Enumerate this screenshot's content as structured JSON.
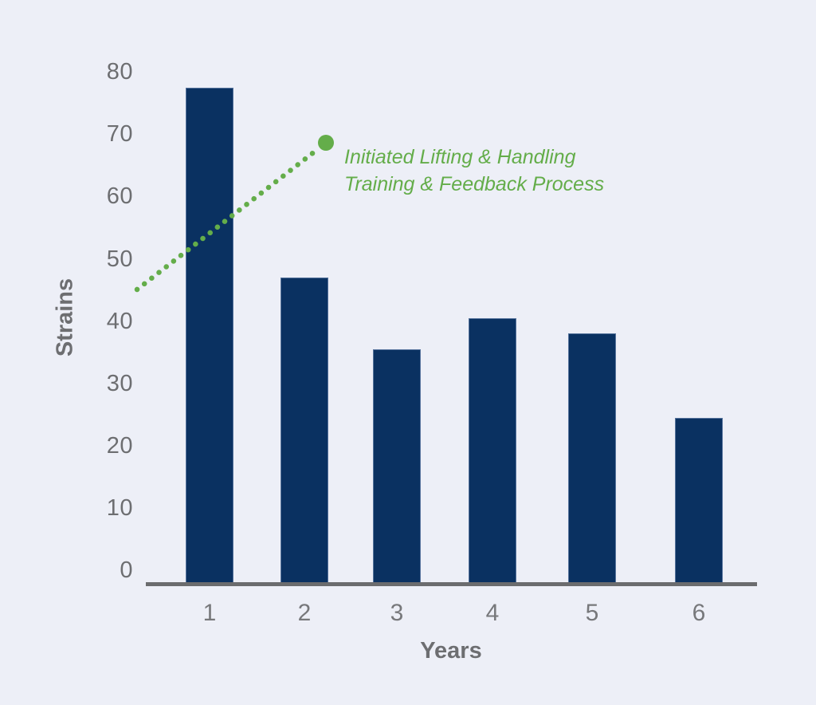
{
  "colors": {
    "background": "#edeff7",
    "bar": "#0a3161",
    "accent_green": "#64ad4a",
    "text_gray": "#6d6e71",
    "axis_line": "#6b6c6e"
  },
  "chart_data": {
    "type": "bar",
    "title": "",
    "categories": [
      "1",
      "2",
      "3",
      "4",
      "5",
      "6"
    ],
    "values": [
      77.5,
      47,
      35.5,
      40.5,
      38,
      24.5
    ],
    "xlabel": "Years",
    "ylabel": "Strains",
    "y_ticks": [
      0,
      10,
      20,
      30,
      40,
      50,
      60,
      70,
      80
    ],
    "ylim": [
      0,
      80
    ],
    "grid": false,
    "legend": "none",
    "bar_color": "#0a3161",
    "annotation": {
      "text_line1": "Initiated Lifting & Handling",
      "text_line2": "Training & Feedback Process",
      "color": "#64ad4a",
      "style": "italic",
      "marker": "dotted-leader-line-with-endpoint-dot",
      "points_between_years": "1 and 2"
    }
  }
}
